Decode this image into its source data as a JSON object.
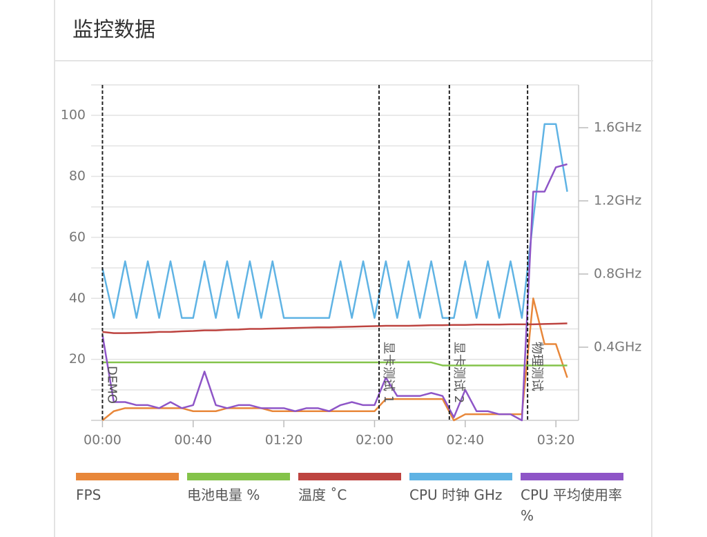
{
  "header": {
    "title": "监控数据"
  },
  "chart_data": {
    "type": "line",
    "x": [
      0,
      5,
      10,
      15,
      20,
      25,
      30,
      35,
      40,
      45,
      50,
      55,
      60,
      65,
      70,
      75,
      80,
      85,
      90,
      95,
      100,
      105,
      110,
      115,
      120,
      125,
      130,
      135,
      140,
      145,
      150,
      155,
      160,
      165,
      170,
      175,
      180,
      185,
      190,
      195,
      200,
      205
    ],
    "xlim": [
      -5,
      210
    ],
    "xticks": [
      {
        "value": 0,
        "label": "00:00"
      },
      {
        "value": 40,
        "label": "00:40"
      },
      {
        "value": 80,
        "label": "01:20"
      },
      {
        "value": 120,
        "label": "02:00"
      },
      {
        "value": 160,
        "label": "02:40"
      },
      {
        "value": 200,
        "label": "03:20"
      }
    ],
    "ylim": [
      0,
      110
    ],
    "yticks": [
      20,
      40,
      60,
      80,
      100
    ],
    "grid_lines": [
      10,
      20,
      30,
      40,
      50,
      60,
      70,
      80,
      90,
      100,
      110
    ],
    "y2lim": [
      0,
      1.834
    ],
    "y2ticks": [
      {
        "value": 0.4,
        "label": "0.4GHz"
      },
      {
        "value": 0.8,
        "label": "0.8GHz"
      },
      {
        "value": 1.2,
        "label": "1.2GHz"
      },
      {
        "value": 1.6,
        "label": "1.6GHz"
      }
    ],
    "grid": true,
    "annotations": [
      {
        "x": 0,
        "text": "DEMO"
      },
      {
        "x": 122,
        "text": "显卡测试 1"
      },
      {
        "x": 153,
        "text": "显卡测试 2"
      },
      {
        "x": 187.5,
        "text": "物理测试"
      }
    ],
    "series": [
      {
        "name": "FPS",
        "color": "#e8873a",
        "values": [
          0,
          3,
          4,
          4,
          4,
          4,
          4,
          4,
          3,
          3,
          3,
          4,
          4,
          4,
          4,
          3,
          3,
          3,
          3,
          3,
          3,
          3,
          3,
          3,
          3,
          7,
          7,
          7,
          7,
          7,
          7,
          0,
          2,
          2,
          2,
          2,
          2,
          2,
          40,
          25,
          25,
          14
        ]
      },
      {
        "name": "电池电量 %",
        "color": "#84c34a",
        "values": [
          19,
          19,
          19,
          19,
          19,
          19,
          19,
          19,
          19,
          19,
          19,
          19,
          19,
          19,
          19,
          19,
          19,
          19,
          19,
          19,
          19,
          19,
          19,
          19,
          19,
          19,
          19,
          19,
          19,
          19,
          18,
          18,
          18,
          18,
          18,
          18,
          18,
          18,
          18,
          18,
          18,
          18
        ]
      },
      {
        "name": "温度 ˚C",
        "color": "#bd4440",
        "values": [
          29,
          28.6,
          28.6,
          28.7,
          28.8,
          29,
          29,
          29.2,
          29.3,
          29.5,
          29.5,
          29.7,
          29.8,
          30,
          30,
          30.1,
          30.2,
          30.3,
          30.4,
          30.5,
          30.5,
          30.6,
          30.7,
          30.8,
          30.9,
          31,
          31,
          31,
          31.1,
          31.2,
          31.2,
          31.3,
          31.3,
          31.4,
          31.4,
          31.4,
          31.5,
          31.5,
          31.5,
          31.6,
          31.7,
          31.8
        ]
      },
      {
        "name": "CPU 时钟 GHz",
        "color": "#5fb3e4",
        "axis": "y2",
        "values": [
          0.83,
          0.56,
          0.87,
          0.56,
          0.87,
          0.56,
          0.87,
          0.56,
          0.56,
          0.87,
          0.56,
          0.87,
          0.56,
          0.87,
          0.56,
          0.87,
          0.56,
          0.56,
          0.56,
          0.56,
          0.56,
          0.87,
          0.56,
          0.87,
          0.56,
          0.87,
          0.56,
          0.87,
          0.56,
          0.87,
          0.56,
          0.56,
          0.87,
          0.56,
          0.87,
          0.56,
          0.87,
          0.56,
          1.1,
          1.62,
          1.62,
          1.25
        ]
      },
      {
        "name": "CPU 平均使用率 %",
        "color": "#8e55c7",
        "values": [
          28,
          6,
          6,
          5,
          5,
          4,
          6,
          4,
          5,
          16,
          5,
          4,
          5,
          5,
          4,
          4,
          4,
          3,
          4,
          4,
          3,
          5,
          6,
          5,
          5,
          14,
          8,
          8,
          8,
          9,
          8,
          1,
          10,
          3,
          3,
          2,
          2,
          0,
          75,
          75,
          83,
          84
        ]
      }
    ]
  }
}
